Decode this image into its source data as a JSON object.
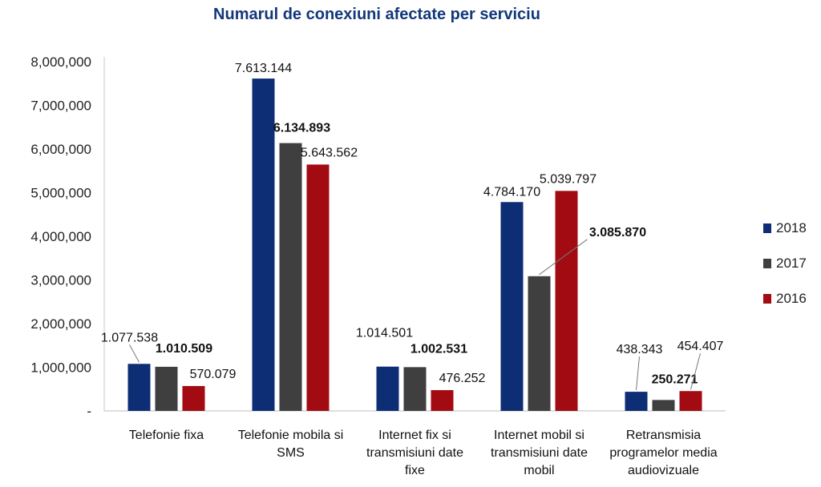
{
  "chart_data": {
    "type": "bar",
    "title": "Numarul de conexiuni afectate per serviciu",
    "categories": [
      [
        "Telefonie fixa"
      ],
      [
        "Telefonie mobila si",
        "SMS"
      ],
      [
        "Internet fix si",
        "transmisiuni date",
        "fixe"
      ],
      [
        "Internet mobil si",
        "transmisiuni date",
        "mobil"
      ],
      [
        "Retransmisia",
        "programelor media",
        "audiovizuale"
      ]
    ],
    "series": [
      {
        "name": "2018",
        "color": "#0d2d74",
        "values": [
          1077538,
          7613144,
          1014501,
          4784170,
          438343
        ],
        "labels": [
          "1.077.538",
          "7.613.144",
          "1.014.501",
          "4.784.170",
          "438.343"
        ]
      },
      {
        "name": "2017",
        "color": "#3f3f3f",
        "values": [
          1010509,
          6134893,
          1002531,
          3085870,
          250271
        ],
        "labels": [
          "1.010.509",
          "6.134.893",
          "1.002.531",
          "3.085.870",
          "250.271"
        ]
      },
      {
        "name": "2016",
        "color": "#a30b12",
        "values": [
          570079,
          5643562,
          476252,
          5039797,
          454407
        ],
        "labels": [
          "570.079",
          "5.643.562",
          "476.252",
          "5.039.797",
          "454.407"
        ]
      }
    ],
    "ylim": [
      0,
      8000000
    ],
    "yticks": [
      "-",
      "1,000,000",
      "2,000,000",
      "3,000,000",
      "4,000,000",
      "5,000,000",
      "6,000,000",
      "7,000,000",
      "8,000,000"
    ],
    "grid": false,
    "legend_position": "right",
    "title_color": "#12387a"
  }
}
